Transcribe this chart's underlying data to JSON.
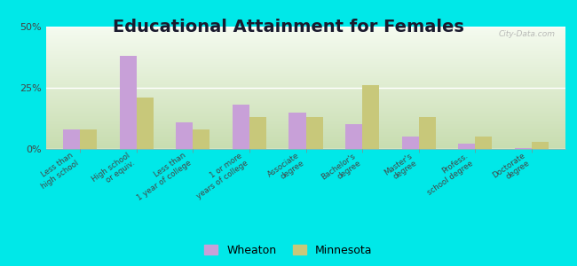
{
  "title": "Educational Attainment for Females",
  "categories": [
    "Less than\nhigh school",
    "High school\nor equiv.",
    "Less than\n1 year of college",
    "1 or more\nyears of college",
    "Associate\ndegree",
    "Bachelor's\ndegree",
    "Master's\ndegree",
    "Profess.\nschool degree",
    "Doctorate\ndegree"
  ],
  "wheaton": [
    8.0,
    38.0,
    11.0,
    18.0,
    15.0,
    10.0,
    5.0,
    2.0,
    0.5
  ],
  "minnesota": [
    8.0,
    21.0,
    8.0,
    13.0,
    13.0,
    26.0,
    13.0,
    5.0,
    3.0
  ],
  "wheaton_color": "#c8a0d8",
  "minnesota_color": "#c8c87a",
  "bg_top_color": "#f0f8e8",
  "bg_bottom_color": "#d8edc8",
  "outer_background": "#00e8e8",
  "ylim": [
    0,
    50
  ],
  "yticks": [
    0,
    25,
    50
  ],
  "ytick_labels": [
    "0%",
    "25%",
    "50%"
  ],
  "title_fontsize": 14,
  "legend_labels": [
    "Wheaton",
    "Minnesota"
  ]
}
